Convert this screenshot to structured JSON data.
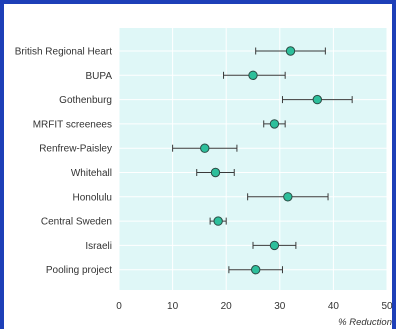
{
  "chart_data": {
    "type": "scatter",
    "style": "forest-plot",
    "title": "",
    "xlabel": "% Reduction",
    "ylabel": "",
    "xlim": [
      0,
      50
    ],
    "xticks": [
      0,
      10,
      20,
      30,
      40,
      50
    ],
    "grid": true,
    "legend": "none",
    "colors": {
      "plot_background": "#dff7f7",
      "grid": "#ffffff",
      "marker_fill": "#2dbf9b",
      "marker_stroke": "#2b4b44",
      "error_bar": "#3a3a3a",
      "frame": "#1d3fb8"
    },
    "studies": [
      {
        "label": "British Regional Heart",
        "estimate": 32,
        "ci_low": 25.5,
        "ci_high": 38.5
      },
      {
        "label": "BUPA",
        "estimate": 25,
        "ci_low": 19.5,
        "ci_high": 31
      },
      {
        "label": "Gothenburg",
        "estimate": 37,
        "ci_low": 30.5,
        "ci_high": 43.5
      },
      {
        "label": "MRFIT screenees",
        "estimate": 29,
        "ci_low": 27,
        "ci_high": 31
      },
      {
        "label": "Renfrew-Paisley",
        "estimate": 16,
        "ci_low": 10,
        "ci_high": 22
      },
      {
        "label": "Whitehall",
        "estimate": 18,
        "ci_low": 14.5,
        "ci_high": 21.5
      },
      {
        "label": "Honolulu",
        "estimate": 31.5,
        "ci_low": 24,
        "ci_high": 39
      },
      {
        "label": "Central Sweden",
        "estimate": 18.5,
        "ci_low": 17,
        "ci_high": 20
      },
      {
        "label": "Israeli",
        "estimate": 29,
        "ci_low": 25,
        "ci_high": 33
      },
      {
        "label": "Pooling project",
        "estimate": 25.5,
        "ci_low": 20.5,
        "ci_high": 30.5
      }
    ]
  }
}
